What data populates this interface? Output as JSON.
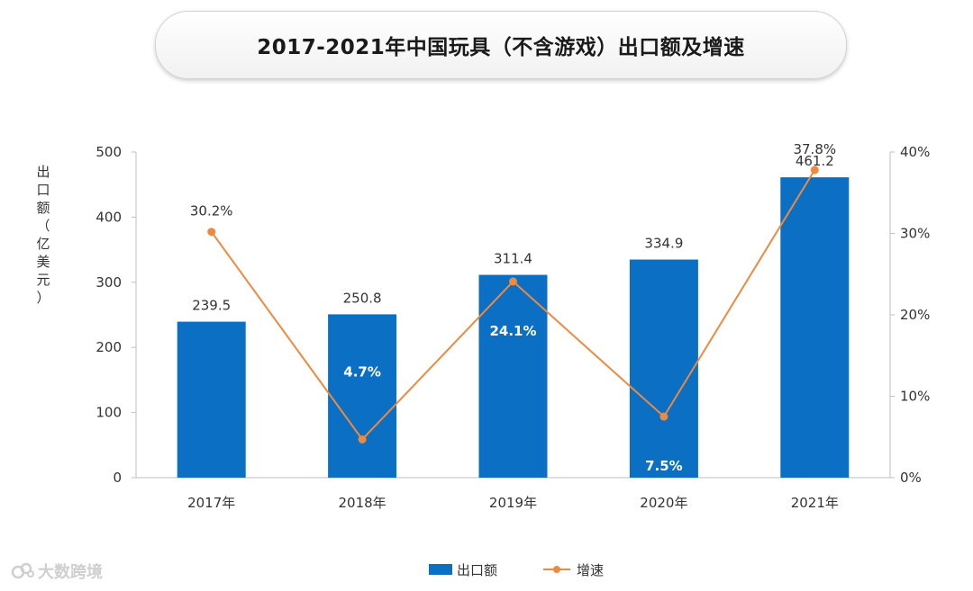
{
  "chart_data": {
    "type": "bar",
    "title": "2017-2021年中国玩具（不含游戏）出口额及增速",
    "categories": [
      "2017年",
      "2018年",
      "2019年",
      "2020年",
      "2021年"
    ],
    "ylabel": "出口额（亿美元）",
    "ylim": [
      0,
      500
    ],
    "yticks": [
      "0",
      "100",
      "200",
      "300",
      "400",
      "500"
    ],
    "y2lim": [
      0,
      40
    ],
    "y2ticks": [
      "0%",
      "10%",
      "20%",
      "30%",
      "40%"
    ],
    "grid": false,
    "legend_position": "bottom",
    "series": [
      {
        "name": "出口额",
        "type": "bar",
        "color": "#0b6fc4",
        "values": [
          239.5,
          250.8,
          311.4,
          334.9,
          461.2
        ],
        "labels": [
          "239.5",
          "250.8",
          "311.4",
          "334.9",
          "461.2"
        ]
      },
      {
        "name": "增速",
        "type": "line",
        "axis": "right",
        "color": "#ed8a3f",
        "values": [
          30.2,
          4.7,
          24.1,
          7.5,
          37.8
        ],
        "labels": [
          "30.2%",
          "4.7%",
          "24.1%",
          "7.5%",
          "37.8%"
        ]
      }
    ]
  },
  "watermark": {
    "text": "大数跨境"
  }
}
